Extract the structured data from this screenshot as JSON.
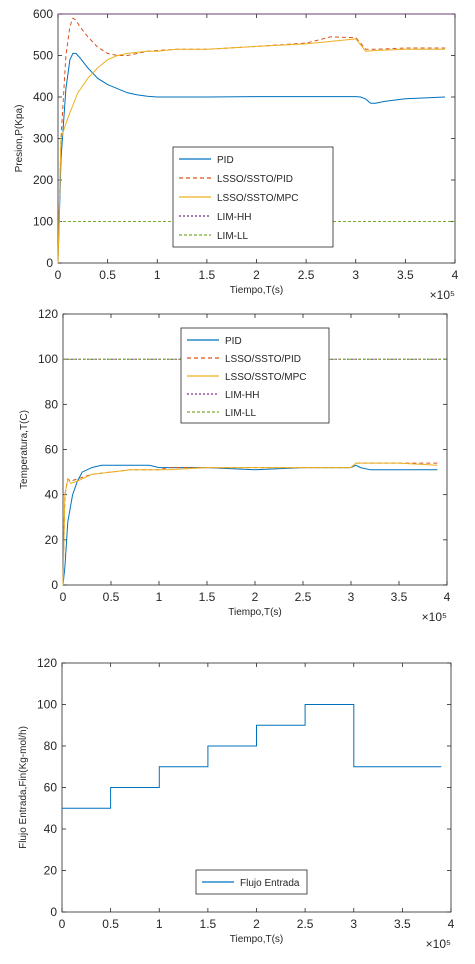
{
  "chart_data": [
    {
      "type": "line",
      "ylabel": "Presion,P(Kpa)",
      "xlabel": "Tiempo,T(s)",
      "x_exponent": "×10⁵",
      "xlim": [
        0,
        4
      ],
      "ylim": [
        0,
        600
      ],
      "xticks": [
        "0",
        "0.5",
        "1",
        "1.5",
        "2",
        "2.5",
        "3",
        "3.5",
        "4"
      ],
      "yticks": [
        "0",
        "100",
        "200",
        "300",
        "400",
        "500",
        "600"
      ],
      "legend_position": "lower-center",
      "series": [
        {
          "name": "PID",
          "color": "#0072bd",
          "dash": "solid",
          "x": [
            0,
            0.03,
            0.08,
            0.12,
            0.15,
            0.18,
            0.22,
            0.3,
            0.4,
            0.5,
            0.6,
            0.7,
            0.8,
            0.9,
            1.0,
            1.1,
            1.5,
            2.0,
            2.5,
            3.0,
            3.05,
            3.1,
            3.15,
            3.2,
            3.3,
            3.5,
            3.9
          ],
          "y": [
            0,
            250,
            420,
            490,
            505,
            505,
            495,
            470,
            445,
            430,
            420,
            410,
            405,
            402,
            400,
            400,
            400,
            401,
            401,
            401,
            400,
            395,
            385,
            385,
            390,
            396,
            400
          ]
        },
        {
          "name": "LSSO/SSTO/PID",
          "color": "#d95319",
          "dash": "4,3",
          "x": [
            0,
            0.03,
            0.08,
            0.12,
            0.15,
            0.18,
            0.22,
            0.3,
            0.4,
            0.5,
            0.6,
            0.7,
            0.8,
            0.9,
            1.0,
            1.2,
            1.5,
            2.0,
            2.5,
            2.75,
            3.0,
            3.05,
            3.1,
            3.2,
            3.5,
            3.9
          ],
          "y": [
            0,
            300,
            500,
            570,
            590,
            585,
            570,
            545,
            520,
            505,
            500,
            500,
            505,
            510,
            512,
            515,
            515,
            522,
            530,
            545,
            543,
            530,
            515,
            515,
            518,
            518
          ]
        },
        {
          "name": "LSSO/SSTO/MPC",
          "color": "#edb120",
          "dash": "solid",
          "x": [
            0,
            0.03,
            0.1,
            0.2,
            0.3,
            0.4,
            0.5,
            0.6,
            0.7,
            0.8,
            0.9,
            1.0,
            1.2,
            1.5,
            2.0,
            2.5,
            3.0,
            3.05,
            3.1,
            3.2,
            3.5,
            3.9
          ],
          "y": [
            0,
            300,
            350,
            410,
            445,
            470,
            490,
            500,
            505,
            508,
            510,
            510,
            515,
            515,
            522,
            528,
            540,
            525,
            510,
            512,
            515,
            515
          ]
        },
        {
          "name": "LIM-HH",
          "color": "#7e2f8e",
          "dash": "2,2",
          "x": [
            0,
            4
          ],
          "y": [
            600,
            600
          ]
        },
        {
          "name": "LIM-LL",
          "color": "#77ac30",
          "dash": "3,2",
          "x": [
            0,
            4
          ],
          "y": [
            100,
            100
          ]
        }
      ]
    },
    {
      "type": "line",
      "ylabel": "Temperatura,T(C)",
      "xlabel": "Tiempo,T(s)",
      "x_exponent": "×10⁵",
      "xlim": [
        0,
        4
      ],
      "ylim": [
        0,
        120
      ],
      "xticks": [
        "0",
        "0.5",
        "1",
        "1.5",
        "2",
        "2.5",
        "3",
        "3.5",
        "4"
      ],
      "yticks": [
        "0",
        "20",
        "40",
        "60",
        "80",
        "100",
        "120"
      ],
      "legend_position": "top-center",
      "series": [
        {
          "name": "PID",
          "color": "#0072bd",
          "dash": "solid",
          "x": [
            0,
            0.02,
            0.05,
            0.1,
            0.15,
            0.2,
            0.3,
            0.4,
            0.5,
            0.7,
            0.9,
            1.0,
            1.1,
            1.5,
            2.0,
            2.5,
            3.0,
            3.05,
            3.1,
            3.2,
            3.5,
            3.9
          ],
          "y": [
            0,
            8,
            28,
            40,
            46,
            50,
            52,
            53,
            53,
            53,
            53,
            52,
            52,
            52,
            51,
            52,
            52,
            53,
            52,
            51,
            51,
            51
          ]
        },
        {
          "name": "LSSO/SSTO/PID",
          "color": "#d95319",
          "dash": "4,3",
          "x": [
            0,
            0.02,
            0.05,
            0.08,
            0.15,
            0.3,
            0.5,
            0.7,
            0.9,
            1.0,
            1.1,
            1.5,
            2.0,
            2.5,
            3.0,
            3.05,
            3.1,
            3.5,
            3.9
          ],
          "y": [
            0,
            40,
            47,
            46,
            47,
            49,
            50,
            51,
            51,
            51,
            52,
            52,
            52,
            52,
            52,
            54,
            54,
            54,
            54
          ]
        },
        {
          "name": "LSSO/SSTO/MPC",
          "color": "#edb120",
          "dash": "solid",
          "x": [
            0,
            0.02,
            0.05,
            0.08,
            0.15,
            0.3,
            0.5,
            0.7,
            0.9,
            1.0,
            1.1,
            1.5,
            2.0,
            2.5,
            3.0,
            3.05,
            3.1,
            3.5,
            3.9
          ],
          "y": [
            0,
            40,
            47,
            45,
            46,
            49,
            50,
            51,
            51,
            51,
            51,
            52,
            52,
            52,
            52,
            54,
            54,
            54,
            53
          ]
        },
        {
          "name": "LIM-HH",
          "color": "#7e2f8e",
          "dash": "2,2",
          "x": [
            0,
            4
          ],
          "y": [
            100,
            100
          ]
        },
        {
          "name": "LIM-LL",
          "color": "#77ac30",
          "dash": "3,2",
          "x": [
            0,
            4
          ],
          "y": [
            100,
            100
          ]
        }
      ]
    },
    {
      "type": "line",
      "ylabel": "Flujo Entrada,Fin(Kg-mol/h)",
      "xlabel": "Tiempo,T(s)",
      "x_exponent": "×10⁵",
      "xlim": [
        0,
        4
      ],
      "ylim": [
        0,
        120
      ],
      "xticks": [
        "0",
        "0.5",
        "1",
        "1.5",
        "2",
        "2.5",
        "3",
        "3.5",
        "4"
      ],
      "yticks": [
        "0",
        "20",
        "40",
        "60",
        "80",
        "100",
        "120"
      ],
      "legend_position": "bottom-center",
      "series": [
        {
          "name": "Flujo Entrada",
          "color": "#0072bd",
          "dash": "solid",
          "x": [
            0,
            0.5,
            0.5,
            1.0,
            1.0,
            1.5,
            1.5,
            2.0,
            2.0,
            2.5,
            2.5,
            3.0,
            3.0,
            3.9
          ],
          "y": [
            50,
            50,
            60,
            60,
            70,
            70,
            80,
            80,
            90,
            90,
            100,
            100,
            70,
            70
          ]
        }
      ]
    }
  ]
}
